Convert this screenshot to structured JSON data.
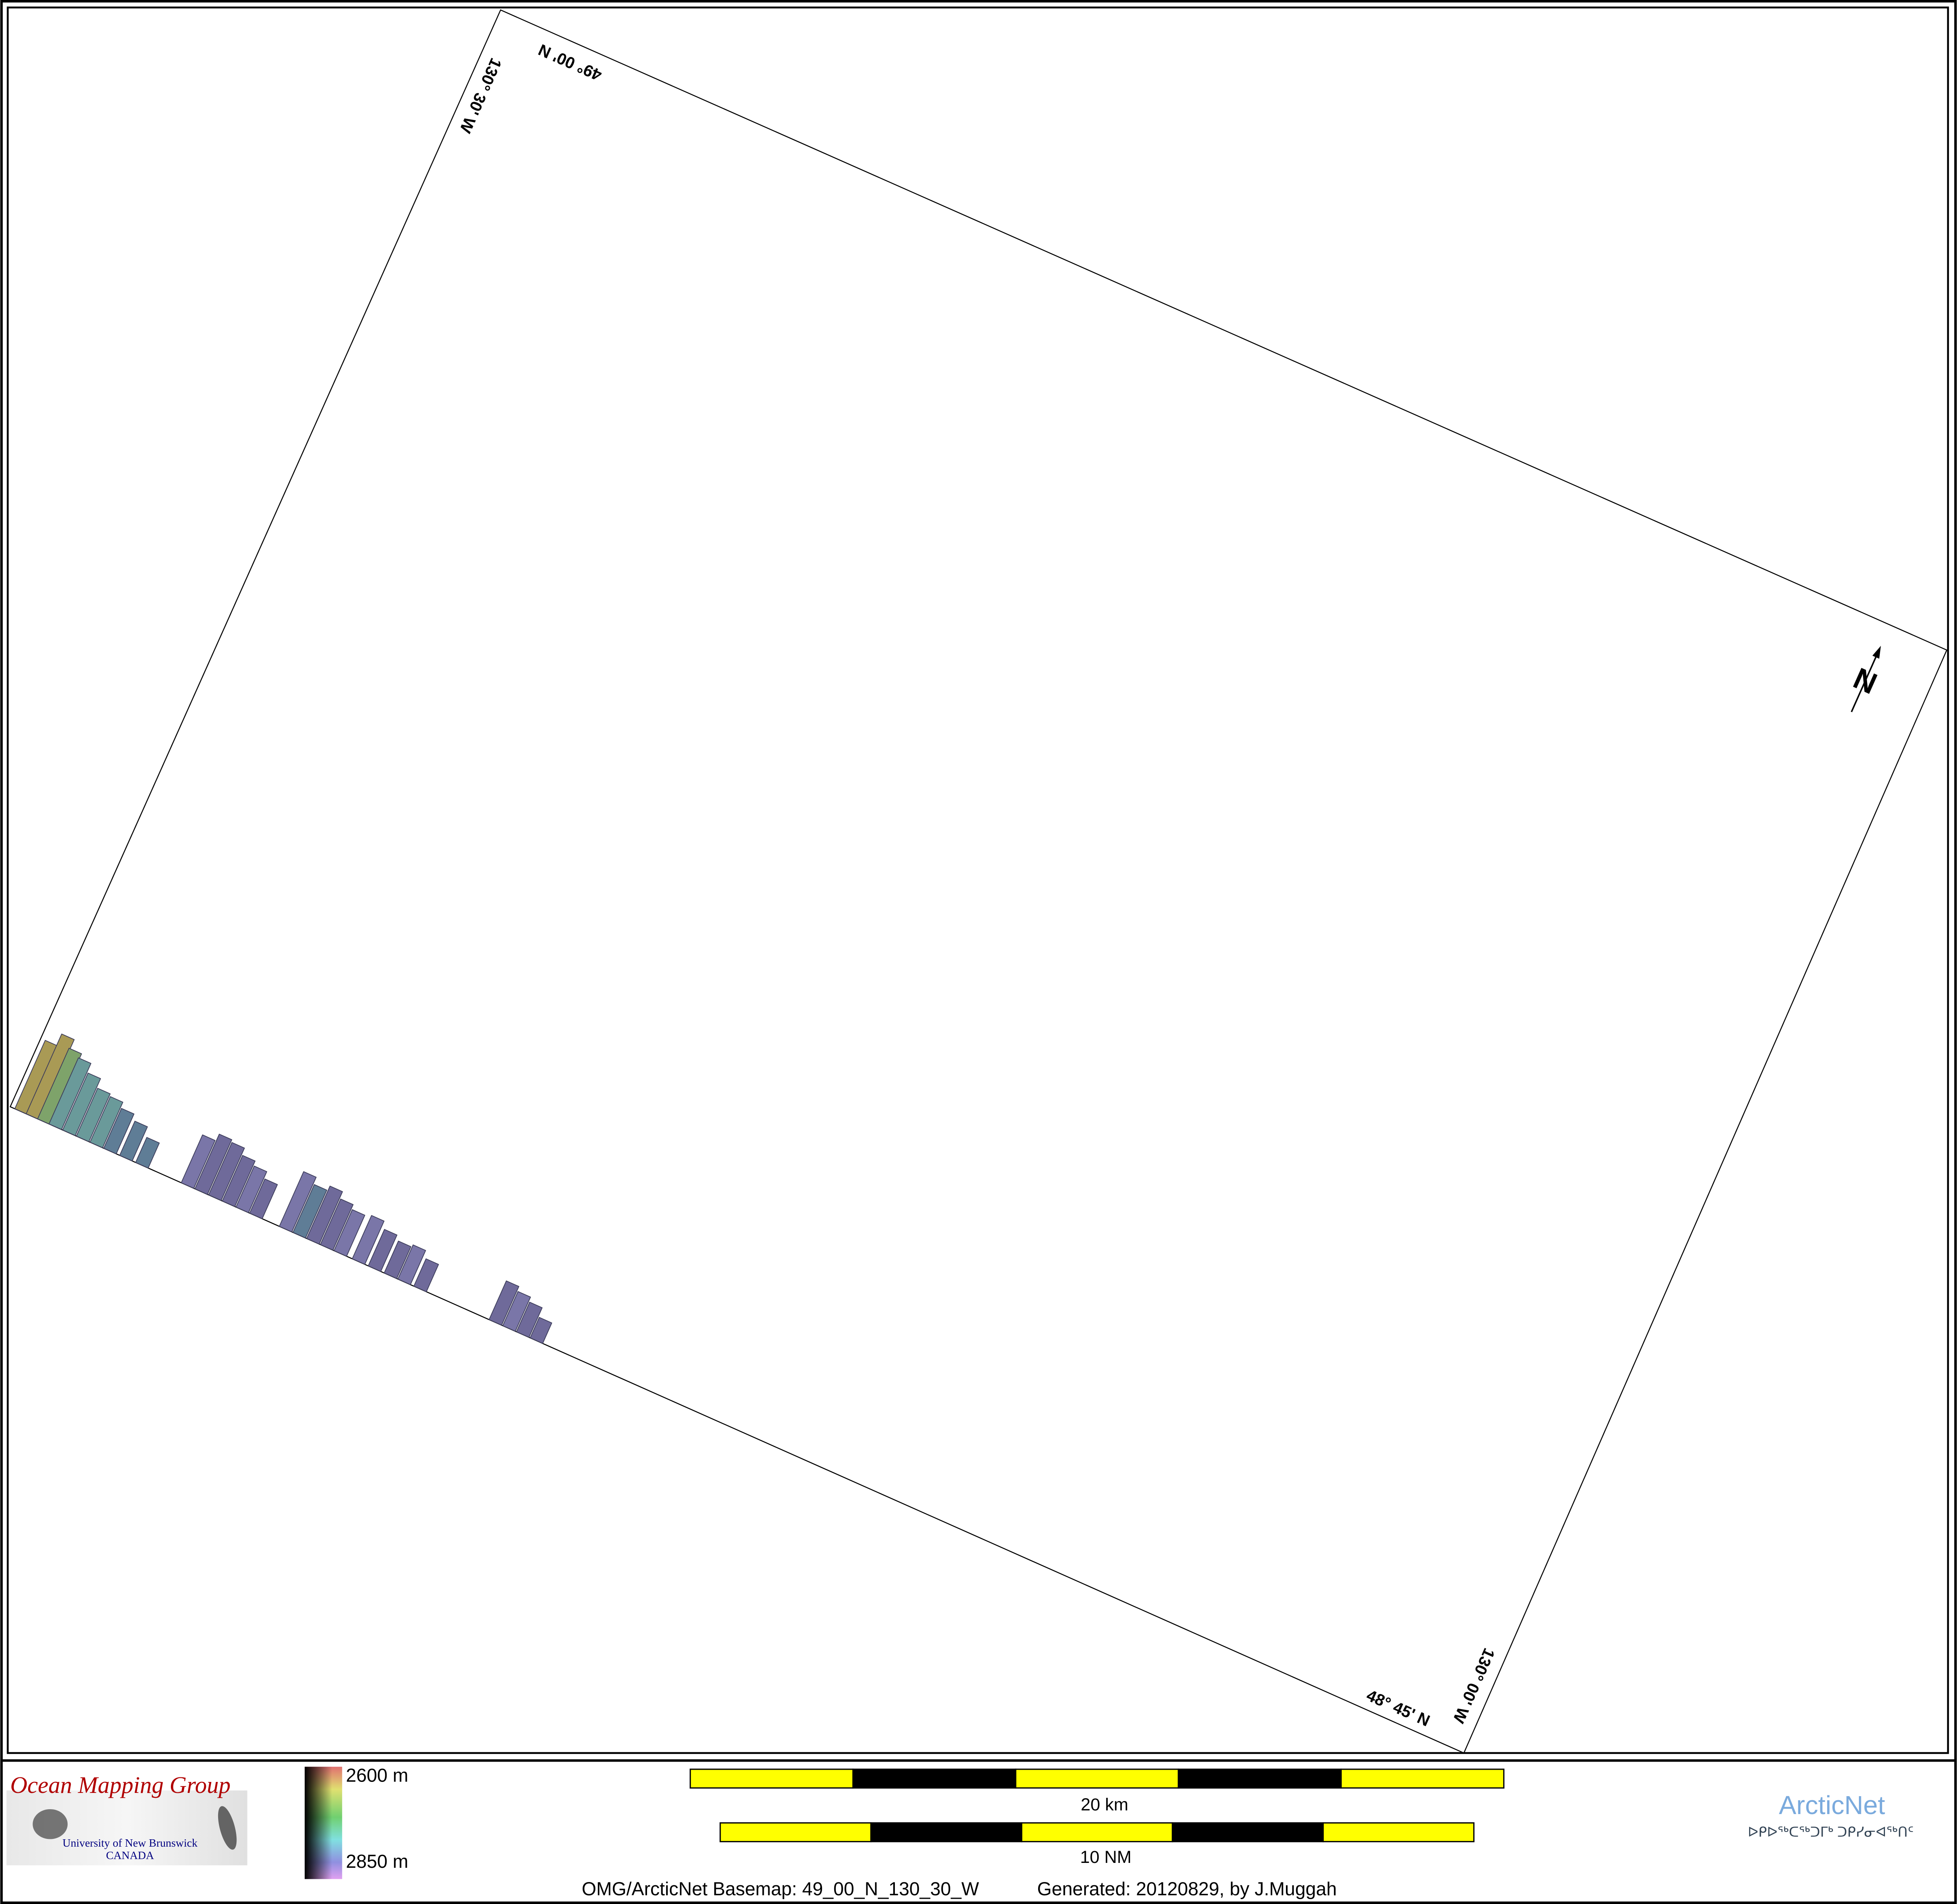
{
  "map": {
    "corner_labels": {
      "top_lat": "49° 00' N",
      "top_lon": "130° 30' W",
      "bottom_lat": "48° 45' N",
      "bottom_lon": "130° 00' W"
    },
    "north_arrow_label": "N",
    "bathymetry_colors": [
      "#6f6a9a",
      "#7a76a8",
      "#5f7d96",
      "#6a9a9a",
      "#7ea36a",
      "#a99a55"
    ]
  },
  "legend": {
    "logo_title": "Ocean Mapping Group",
    "logo_subtitle": "University of New Brunswick",
    "logo_country": "CANADA",
    "depth_min": "2600 m",
    "depth_max": "2850 m",
    "scale_km": "20 km",
    "scale_nm": "10 NM",
    "scale_colors": [
      "#ffff00",
      "#000000"
    ],
    "partner_logo": "ArcticNet",
    "partner_logo_syllabics": "ᐅᑭᐅᖅᑕᖅᑐᒥᒃ ᑐᑭᓯᓂᐊᖅᑎᑦ",
    "footer_basemap": "OMG/ArcticNet Basemap: 49_00_N_130_30_W",
    "footer_generated": "Generated: 20120829, by J.Muggah"
  }
}
